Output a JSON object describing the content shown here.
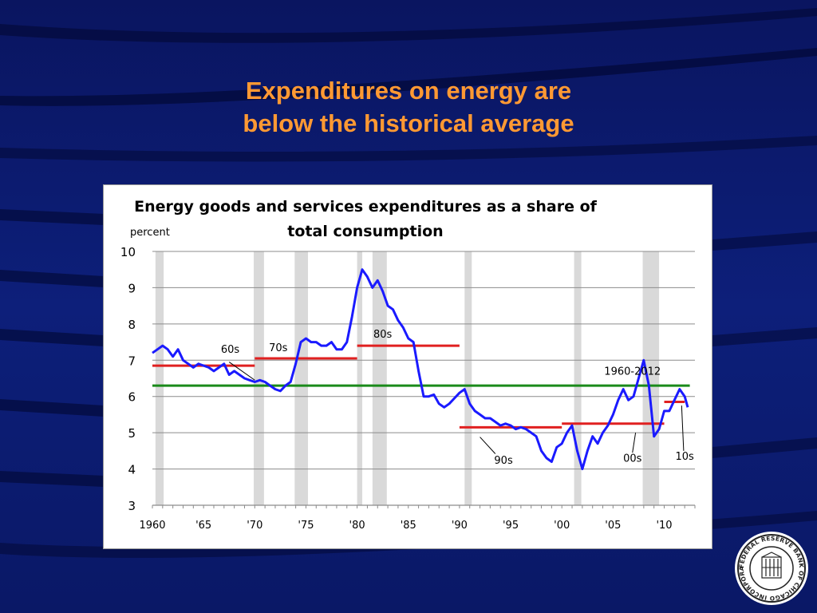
{
  "slide": {
    "title_line1": "Expenditures on energy are",
    "title_line2": "below the historical average",
    "logo_text": "FEDERAL RESERVE BANK OF CHICAGO INCORPORATED MAY 18, 1914"
  },
  "colors": {
    "background": "#0b1a6e",
    "title": "#ff9933",
    "series": "#1a1aff",
    "decade_average": "#e02020",
    "long_run_average": "#1a8a1a",
    "recession_shading": "#d9d9d9"
  },
  "chart_data": {
    "type": "line",
    "title_line1": "Energy goods and services expenditures as a share of",
    "title_line2": "total consumption",
    "ylabel": "percent",
    "xlabel": "",
    "xlim": [
      1960,
      2013
    ],
    "ylim": [
      3,
      10
    ],
    "yticks": [
      3,
      4,
      5,
      6,
      7,
      8,
      9,
      10
    ],
    "xtick_values": [
      1960,
      1965,
      1970,
      1975,
      1980,
      1985,
      1990,
      1995,
      2000,
      2005,
      2010
    ],
    "xtick_labels": [
      "1960",
      "'65",
      "'70",
      "'75",
      "'80",
      "'85",
      "'90",
      "'95",
      "'00",
      "'05",
      "'10"
    ],
    "grid": "horizontal",
    "recessions": [
      [
        1960.3,
        1961.1
      ],
      [
        1969.9,
        1970.9
      ],
      [
        1973.9,
        1975.2
      ],
      [
        1980.0,
        1980.5
      ],
      [
        1981.5,
        1982.9
      ],
      [
        1990.5,
        1991.2
      ],
      [
        2001.2,
        2001.9
      ],
      [
        2007.9,
        2009.5
      ]
    ],
    "series": [
      {
        "x": [
          1960.0,
          1960.5,
          1961.0,
          1961.5,
          1962.0,
          1962.5,
          1963.0,
          1963.5,
          1964.0,
          1964.5,
          1965.0,
          1965.5,
          1966.0,
          1966.5,
          1967.0,
          1967.5,
          1968.0,
          1968.5,
          1969.0,
          1969.5,
          1970.0,
          1970.5,
          1971.0,
          1971.5,
          1972.0,
          1972.5,
          1973.0,
          1973.5,
          1974.0,
          1974.5,
          1975.0,
          1975.5,
          1976.0,
          1976.5,
          1977.0,
          1977.5,
          1978.0,
          1978.5,
          1979.0,
          1979.5,
          1980.0,
          1980.5,
          1981.0,
          1981.5,
          1982.0,
          1982.5,
          1983.0,
          1983.5,
          1984.0,
          1984.5,
          1985.0,
          1985.5,
          1986.0,
          1986.5,
          1987.0,
          1987.5,
          1988.0,
          1988.5,
          1989.0,
          1989.5,
          1990.0,
          1990.5,
          1991.0,
          1991.5,
          1992.0,
          1992.5,
          1993.0,
          1993.5,
          1994.0,
          1994.5,
          1995.0,
          1995.5,
          1996.0,
          1996.5,
          1997.0,
          1997.5,
          1998.0,
          1998.5,
          1999.0,
          1999.5,
          2000.0,
          2000.5,
          2001.0,
          2001.5,
          2002.0,
          2002.5,
          2003.0,
          2003.5,
          2004.0,
          2004.5,
          2005.0,
          2005.5,
          2006.0,
          2006.5,
          2007.0,
          2007.5,
          2008.0,
          2008.5,
          2009.0,
          2009.5,
          2010.0,
          2010.5,
          2011.0,
          2011.5,
          2012.0,
          2012.3
        ],
        "values": [
          7.2,
          7.3,
          7.4,
          7.3,
          7.1,
          7.3,
          7.0,
          6.9,
          6.8,
          6.9,
          6.85,
          6.8,
          6.7,
          6.8,
          6.9,
          6.6,
          6.7,
          6.6,
          6.5,
          6.45,
          6.4,
          6.45,
          6.4,
          6.3,
          6.2,
          6.15,
          6.3,
          6.4,
          6.9,
          7.5,
          7.6,
          7.5,
          7.5,
          7.4,
          7.4,
          7.5,
          7.3,
          7.3,
          7.5,
          8.2,
          9.0,
          9.5,
          9.3,
          9.0,
          9.2,
          8.9,
          8.5,
          8.4,
          8.1,
          7.9,
          7.6,
          7.5,
          6.7,
          6.0,
          6.0,
          6.05,
          5.8,
          5.7,
          5.8,
          5.95,
          6.1,
          6.2,
          5.8,
          5.6,
          5.5,
          5.4,
          5.4,
          5.3,
          5.2,
          5.25,
          5.2,
          5.1,
          5.15,
          5.1,
          5.0,
          4.9,
          4.5,
          4.3,
          4.2,
          4.6,
          4.7,
          5.0,
          5.2,
          4.5,
          4.0,
          4.5,
          4.9,
          4.7,
          5.0,
          5.2,
          5.5,
          5.9,
          6.2,
          5.9,
          6.0,
          6.5,
          7.0,
          6.3,
          4.9,
          5.1,
          5.6,
          5.6,
          5.9,
          6.2,
          6.0,
          5.7
        ]
      }
    ],
    "reference_lines": [
      {
        "label": "60s",
        "x": [
          1960,
          1970
        ],
        "value": 6.85
      },
      {
        "label": "70s",
        "x": [
          1970,
          1980
        ],
        "value": 7.05
      },
      {
        "label": "80s",
        "x": [
          1980,
          1990
        ],
        "value": 7.4
      },
      {
        "label": "90s",
        "x": [
          1990,
          2000
        ],
        "value": 5.15
      },
      {
        "label": "00s",
        "x": [
          2000,
          2010
        ],
        "value": 5.25
      },
      {
        "label": "10s",
        "x": [
          2010,
          2012
        ],
        "value": 5.85
      },
      {
        "label": "1960-2012",
        "x": [
          1960,
          2012.5
        ],
        "value": 6.3
      }
    ]
  }
}
